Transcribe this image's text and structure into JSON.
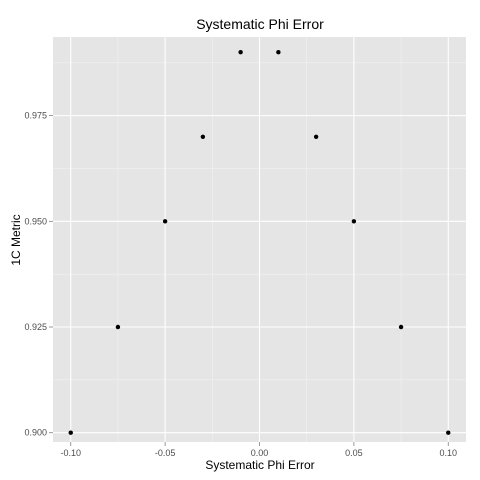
{
  "chart_data": {
    "type": "scatter",
    "title": "Systematic Phi Error",
    "xlabel": "Systematic Phi Error",
    "ylabel": "1C Metric",
    "xlim": [
      -0.1094,
      0.1094
    ],
    "ylim": [
      0.8978,
      0.9936
    ],
    "x_ticks": [
      -0.1,
      -0.05,
      0.0,
      0.05,
      0.1
    ],
    "x_tick_labels": [
      "-0.10",
      "-0.05",
      "0.00",
      "0.05",
      "0.10"
    ],
    "y_ticks": [
      0.9,
      0.925,
      0.95,
      0.975
    ],
    "y_tick_labels": [
      "0.900",
      "0.925",
      "0.950",
      "0.975"
    ],
    "grid": true,
    "background": "#e5e5e5",
    "grid_color": "#ffffff",
    "point_color": "#000000",
    "points": [
      {
        "x": -0.1,
        "y": 0.9
      },
      {
        "x": -0.075,
        "y": 0.925
      },
      {
        "x": -0.05,
        "y": 0.95
      },
      {
        "x": -0.03,
        "y": 0.97
      },
      {
        "x": -0.01,
        "y": 0.99
      },
      {
        "x": 0.01,
        "y": 0.99
      },
      {
        "x": 0.03,
        "y": 0.97
      },
      {
        "x": 0.05,
        "y": 0.95
      },
      {
        "x": 0.075,
        "y": 0.925
      },
      {
        "x": 0.1,
        "y": 0.9
      }
    ]
  }
}
